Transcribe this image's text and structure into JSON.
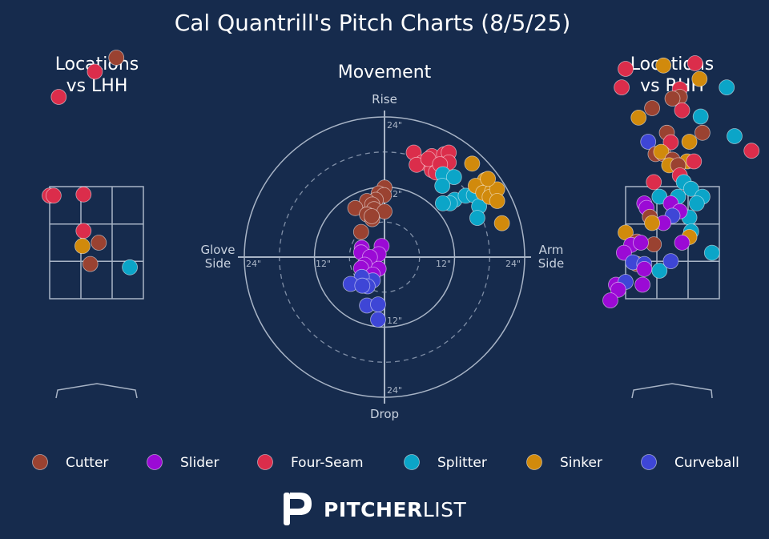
{
  "chart_data": {
    "type": "scatter",
    "title": "Cal Quantrill's Pitch Charts (8/5/25)",
    "pitch_types": [
      {
        "name": "Cutter",
        "color": "#9a4231"
      },
      {
        "name": "Slider",
        "color": "#9b0ad5"
      },
      {
        "name": "Four-Seam",
        "color": "#db2d4b"
      },
      {
        "name": "Splitter",
        "color": "#0ba5c8"
      },
      {
        "name": "Sinker",
        "color": "#d18a0c"
      },
      {
        "name": "Curveball",
        "color": "#3e46d6"
      }
    ],
    "panels": [
      {
        "id": "lhh",
        "title_lines": [
          "Locations",
          "vs LHH"
        ],
        "x_unit": "horizontal location, feet (catcher view)",
        "y_unit": "vertical location, feet",
        "strike_zone": {
          "x": [
            -0.83,
            0.83
          ],
          "y": [
            1.5,
            3.5
          ]
        },
        "points": [
          {
            "type": "Cutter",
            "x": 0.35,
            "y": 5.8
          },
          {
            "type": "Four-Seam",
            "x": -0.03,
            "y": 5.55
          },
          {
            "type": "Four-Seam",
            "x": -0.67,
            "y": 5.1
          },
          {
            "type": "Four-Seam",
            "x": -0.83,
            "y": 3.34
          },
          {
            "type": "Four-Seam",
            "x": -0.76,
            "y": 3.34
          },
          {
            "type": "Four-Seam",
            "x": -0.23,
            "y": 3.36
          },
          {
            "type": "Four-Seam",
            "x": -0.23,
            "y": 2.71
          },
          {
            "type": "Sinker",
            "x": -0.25,
            "y": 2.44
          },
          {
            "type": "Cutter",
            "x": 0.04,
            "y": 2.5
          },
          {
            "type": "Cutter",
            "x": -0.11,
            "y": 2.12
          },
          {
            "type": "Splitter",
            "x": 0.59,
            "y": 2.06
          }
        ]
      },
      {
        "id": "movement",
        "title": "Movement",
        "labels": {
          "top": "Rise",
          "bottom": "Drop",
          "left_lines": [
            "Glove",
            "Side"
          ],
          "right_lines": [
            "Arm",
            "Side"
          ]
        },
        "ring_labels": [
          "12\"",
          "24\""
        ],
        "x_unit": "horizontal break, inches (positive = arm side)",
        "y_unit": "induced vertical break, inches",
        "points": [
          {
            "type": "Four-Seam",
            "x": 5.0,
            "y": 17.9
          },
          {
            "type": "Four-Seam",
            "x": 6.5,
            "y": 16.2
          },
          {
            "type": "Four-Seam",
            "x": 5.5,
            "y": 15.8
          },
          {
            "type": "Four-Seam",
            "x": 8.1,
            "y": 17.3
          },
          {
            "type": "Four-Seam",
            "x": 10.2,
            "y": 17.6
          },
          {
            "type": "Four-Seam",
            "x": 11.0,
            "y": 17.9
          },
          {
            "type": "Four-Seam",
            "x": 11.0,
            "y": 16.2
          },
          {
            "type": "Four-Seam",
            "x": 8.7,
            "y": 15.6
          },
          {
            "type": "Four-Seam",
            "x": 8.1,
            "y": 14.9
          },
          {
            "type": "Four-Seam",
            "x": 8.8,
            "y": 14.5
          },
          {
            "type": "Four-Seam",
            "x": 7.5,
            "y": 16.8
          },
          {
            "type": "Four-Seam",
            "x": 9.5,
            "y": 15.9
          },
          {
            "type": "Splitter",
            "x": 10.0,
            "y": 14.2
          },
          {
            "type": "Splitter",
            "x": 11.9,
            "y": 13.7
          },
          {
            "type": "Splitter",
            "x": 9.9,
            "y": 12.2
          },
          {
            "type": "Splitter",
            "x": 12.0,
            "y": 9.8
          },
          {
            "type": "Splitter",
            "x": 13.9,
            "y": 10.5
          },
          {
            "type": "Splitter",
            "x": 11.2,
            "y": 9.2
          },
          {
            "type": "Splitter",
            "x": 10.0,
            "y": 9.2
          },
          {
            "type": "Splitter",
            "x": 15.9,
            "y": 11.6
          },
          {
            "type": "Splitter",
            "x": 15.3,
            "y": 10.6
          },
          {
            "type": "Splitter",
            "x": 16.2,
            "y": 8.7
          },
          {
            "type": "Splitter",
            "x": 15.9,
            "y": 6.7
          },
          {
            "type": "Sinker",
            "x": 15.0,
            "y": 16.0
          },
          {
            "type": "Sinker",
            "x": 17.2,
            "y": 13.2
          },
          {
            "type": "Sinker",
            "x": 15.6,
            "y": 12.2
          },
          {
            "type": "Sinker",
            "x": 16.9,
            "y": 11.0
          },
          {
            "type": "Sinker",
            "x": 18.4,
            "y": 11.2
          },
          {
            "type": "Sinker",
            "x": 18.0,
            "y": 10.3
          },
          {
            "type": "Sinker",
            "x": 19.3,
            "y": 11.6
          },
          {
            "type": "Sinker",
            "x": 19.3,
            "y": 9.6
          },
          {
            "type": "Sinker",
            "x": 20.1,
            "y": 5.8
          },
          {
            "type": "Sinker",
            "x": 17.7,
            "y": 13.4
          },
          {
            "type": "Cutter",
            "x": 0.0,
            "y": 11.9
          },
          {
            "type": "Cutter",
            "x": -1.0,
            "y": 10.9
          },
          {
            "type": "Cutter",
            "x": -0.1,
            "y": 10.6
          },
          {
            "type": "Cutter",
            "x": -1.5,
            "y": 9.8
          },
          {
            "type": "Cutter",
            "x": -3.0,
            "y": 9.6
          },
          {
            "type": "Cutter",
            "x": -2.1,
            "y": 9.0
          },
          {
            "type": "Cutter",
            "x": -5.0,
            "y": 8.4
          },
          {
            "type": "Cutter",
            "x": -1.8,
            "y": 8.2
          },
          {
            "type": "Cutter",
            "x": -3.0,
            "y": 7.3
          },
          {
            "type": "Cutter",
            "x": 0.0,
            "y": 7.8
          },
          {
            "type": "Cutter",
            "x": -2.1,
            "y": 6.5
          },
          {
            "type": "Cutter",
            "x": -4.0,
            "y": 4.3
          },
          {
            "type": "Cutter",
            "x": -2.2,
            "y": 7.0
          },
          {
            "type": "Slider",
            "x": -0.5,
            "y": 1.9
          },
          {
            "type": "Slider",
            "x": -3.9,
            "y": 1.6
          },
          {
            "type": "Slider",
            "x": -1.0,
            "y": 0.5
          },
          {
            "type": "Slider",
            "x": -4.0,
            "y": 0.8
          },
          {
            "type": "Slider",
            "x": -2.5,
            "y": 0.0
          },
          {
            "type": "Slider",
            "x": -3.4,
            "y": -1.3
          },
          {
            "type": "Slider",
            "x": -1.0,
            "y": -2.0
          },
          {
            "type": "Slider",
            "x": -4.0,
            "y": -1.9
          },
          {
            "type": "Slider",
            "x": -2.0,
            "y": -3.0
          },
          {
            "type": "Curveball",
            "x": -2.0,
            "y": -4.0
          },
          {
            "type": "Curveball",
            "x": -3.9,
            "y": -3.4
          },
          {
            "type": "Curveball",
            "x": -5.8,
            "y": -4.6
          },
          {
            "type": "Curveball",
            "x": -2.9,
            "y": -5.0
          },
          {
            "type": "Curveball",
            "x": -3.8,
            "y": -4.9
          },
          {
            "type": "Curveball",
            "x": -3.0,
            "y": -8.3
          },
          {
            "type": "Curveball",
            "x": -1.1,
            "y": -8.1
          },
          {
            "type": "Curveball",
            "x": -1.1,
            "y": -10.7
          }
        ]
      },
      {
        "id": "rhh",
        "title_lines": [
          "Locations",
          "vs RHH"
        ],
        "x_unit": "horizontal location, feet (catcher view)",
        "y_unit": "vertical location, feet",
        "strike_zone": {
          "x": [
            -0.83,
            0.83
          ],
          "y": [
            1.5,
            3.5
          ]
        },
        "points": [
          {
            "type": "Four-Seam",
            "x": -0.83,
            "y": 5.6
          },
          {
            "type": "Sinker",
            "x": -0.16,
            "y": 5.66
          },
          {
            "type": "Four-Seam",
            "x": 0.4,
            "y": 5.7
          },
          {
            "type": "Four-Seam",
            "x": -0.9,
            "y": 5.27
          },
          {
            "type": "Sinker",
            "x": 0.48,
            "y": 5.42
          },
          {
            "type": "Splitter",
            "x": 0.96,
            "y": 5.27
          },
          {
            "type": "Four-Seam",
            "x": 0.13,
            "y": 5.24
          },
          {
            "type": "Cutter",
            "x": 0.13,
            "y": 5.1
          },
          {
            "type": "Cutter",
            "x": 0.0,
            "y": 5.07
          },
          {
            "type": "Cutter",
            "x": -0.36,
            "y": 4.9
          },
          {
            "type": "Four-Seam",
            "x": 0.17,
            "y": 4.86
          },
          {
            "type": "Sinker",
            "x": -0.6,
            "y": 4.73
          },
          {
            "type": "Splitter",
            "x": 0.5,
            "y": 4.75
          },
          {
            "type": "Cutter",
            "x": 0.53,
            "y": 4.46
          },
          {
            "type": "Cutter",
            "x": -0.1,
            "y": 4.46
          },
          {
            "type": "Splitter",
            "x": 1.1,
            "y": 4.4
          },
          {
            "type": "Four-Seam",
            "x": -0.03,
            "y": 4.29
          },
          {
            "type": "Curveball",
            "x": -0.43,
            "y": 4.3
          },
          {
            "type": "Sinker",
            "x": 0.3,
            "y": 4.3
          },
          {
            "type": "Four-Seam",
            "x": 1.4,
            "y": 4.14
          },
          {
            "type": "Cutter",
            "x": -0.3,
            "y": 4.08
          },
          {
            "type": "Cutter",
            "x": -0.16,
            "y": 4.08
          },
          {
            "type": "Sinker",
            "x": -0.2,
            "y": 4.12
          },
          {
            "type": "Cutter",
            "x": 0.0,
            "y": 3.98
          },
          {
            "type": "Sinker",
            "x": 0.26,
            "y": 3.95
          },
          {
            "type": "Four-Seam",
            "x": 0.38,
            "y": 3.95
          },
          {
            "type": "Sinker",
            "x": -0.06,
            "y": 3.88
          },
          {
            "type": "Cutter",
            "x": 0.1,
            "y": 3.88
          },
          {
            "type": "Four-Seam",
            "x": 0.13,
            "y": 3.7
          },
          {
            "type": "Four-Seam",
            "x": -0.33,
            "y": 3.58
          },
          {
            "type": "Splitter",
            "x": 0.2,
            "y": 3.58
          },
          {
            "type": "Splitter",
            "x": 0.33,
            "y": 3.46
          },
          {
            "type": "Splitter",
            "x": -0.23,
            "y": 3.32
          },
          {
            "type": "Splitter",
            "x": 0.1,
            "y": 3.32
          },
          {
            "type": "Splitter",
            "x": 0.53,
            "y": 3.32
          },
          {
            "type": "Splitter",
            "x": 0.43,
            "y": 3.2
          },
          {
            "type": "Slider",
            "x": -0.03,
            "y": 3.2
          },
          {
            "type": "Slider",
            "x": -0.5,
            "y": 3.2
          },
          {
            "type": "Slider",
            "x": -0.46,
            "y": 3.12
          },
          {
            "type": "Cutter",
            "x": -0.4,
            "y": 2.96
          },
          {
            "type": "Splitter",
            "x": 0.3,
            "y": 2.95
          },
          {
            "type": "Slider",
            "x": 0.13,
            "y": 3.06
          },
          {
            "type": "Curveball",
            "x": 0.0,
            "y": 2.98
          },
          {
            "type": "Slider",
            "x": -0.16,
            "y": 2.85
          },
          {
            "type": "Sinker",
            "x": -0.36,
            "y": 2.85
          },
          {
            "type": "Splitter",
            "x": 0.33,
            "y": 2.7
          },
          {
            "type": "Sinker",
            "x": 0.3,
            "y": 2.6
          },
          {
            "type": "Sinker",
            "x": -0.83,
            "y": 2.68
          },
          {
            "type": "Cutter",
            "x": -0.63,
            "y": 2.52
          },
          {
            "type": "Slider",
            "x": -0.73,
            "y": 2.46
          },
          {
            "type": "Cutter",
            "x": -0.33,
            "y": 2.47
          },
          {
            "type": "Slider",
            "x": -0.56,
            "y": 2.5
          },
          {
            "type": "Slider",
            "x": 0.17,
            "y": 2.5
          },
          {
            "type": "Slider",
            "x": -0.86,
            "y": 2.32
          },
          {
            "type": "Splitter",
            "x": 0.7,
            "y": 2.32
          },
          {
            "type": "Cutter",
            "x": -0.63,
            "y": 2.12
          },
          {
            "type": "Curveball",
            "x": -0.7,
            "y": 2.15
          },
          {
            "type": "Curveball",
            "x": -0.5,
            "y": 2.12
          },
          {
            "type": "Slider",
            "x": -0.5,
            "y": 2.03
          },
          {
            "type": "Splitter",
            "x": -0.23,
            "y": 2.0
          },
          {
            "type": "Curveball",
            "x": -0.03,
            "y": 2.17
          },
          {
            "type": "Slider",
            "x": -1.0,
            "y": 1.75
          },
          {
            "type": "Curveball",
            "x": -0.83,
            "y": 1.8
          },
          {
            "type": "Slider",
            "x": -0.53,
            "y": 1.75
          },
          {
            "type": "Slider",
            "x": -0.96,
            "y": 1.66
          },
          {
            "type": "Slider",
            "x": -1.1,
            "y": 1.47
          }
        ]
      }
    ]
  },
  "legend": [
    "Cutter",
    "Slider",
    "Four-Seam",
    "Splitter",
    "Sinker",
    "Curveball"
  ],
  "branding": {
    "logo_bold": "PITCHER",
    "logo_light": "LIST"
  }
}
